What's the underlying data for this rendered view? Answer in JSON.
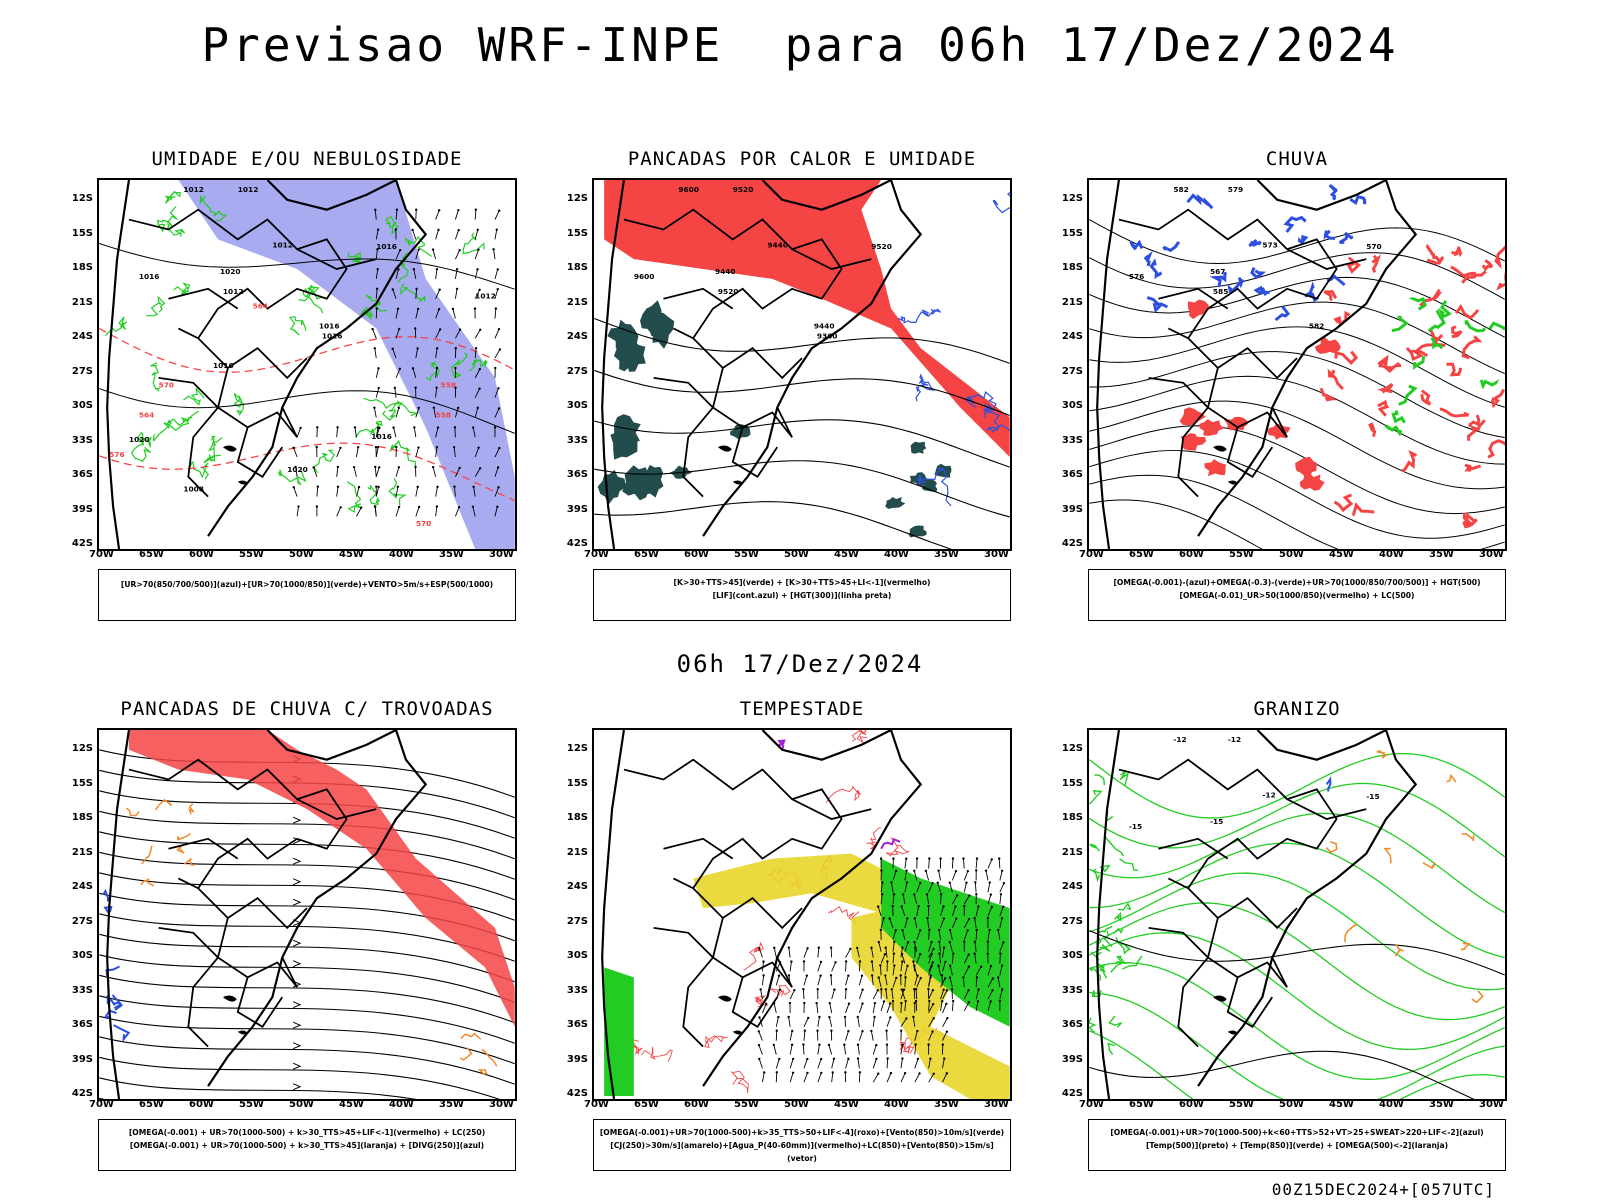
{
  "header": {
    "title": "Previsao WRF-INPE  para 06h 17/Dez/2024"
  },
  "middle": {
    "title": "06h 17/Dez/2024"
  },
  "footer": {
    "run": "00Z15DEC2024+[057UTC]"
  },
  "axes": {
    "lon": [
      "70W",
      "65W",
      "60W",
      "55W",
      "50W",
      "45W",
      "40W",
      "35W",
      "30W"
    ],
    "lat": [
      "12S",
      "15S",
      "18S",
      "21S",
      "24S",
      "27S",
      "30S",
      "33S",
      "36S",
      "39S",
      "42S"
    ]
  },
  "colors": {
    "red": "#f44444",
    "blue": "#2d4fe0",
    "green": "#22cc22",
    "lavender": "#9ea2ee",
    "yellow": "#e8d52a",
    "orange": "#f08a2a",
    "darkteal": "#234d4d",
    "purple": "#a020d0"
  },
  "panels": [
    {
      "title": "UMIDADE E/OU NEBULOSIDADE",
      "legend": [
        "[UR>70(850/700/500)](azul)+[UR>70(1000/850)](verde)+VENTO>5m/s+ESP(500/1000)"
      ],
      "labels": [
        "1012",
        "1012",
        "1012",
        "1016",
        "1020",
        "1016",
        "1012",
        "1016",
        "1016",
        "1012",
        "1016",
        "1016",
        "1020",
        "1020",
        "1008",
        "570",
        "564",
        "570",
        "564",
        "558",
        "558",
        "576"
      ]
    },
    {
      "title": "PANCADAS POR CALOR E UMIDADE",
      "legend": [
        "[K>30+TTS>45](verde) + [K>30+TTS>45+LI<-1](vermelho)",
        "[LIF](cont.azul) + [HGT(300)](linha preta)"
      ],
      "labels": [
        "9600",
        "9520",
        "9440",
        "9520",
        "9440",
        "9600",
        "9520",
        "9440",
        "9360"
      ]
    },
    {
      "title": "CHUVA",
      "legend": [
        "[OMEGA(-0.001)-(azul)+OMEGA(-0.3)-(verde)+UR>70(1000/850/700/500)] + HGT(500)",
        "[OMEGA(-0.01)_UR>50(1000/850)(vermelho) + LC(500)"
      ],
      "labels": [
        "582",
        "579",
        "573",
        "570",
        "567",
        "576",
        "585",
        "582"
      ]
    },
    {
      "title": "PANCADAS DE CHUVA C/ TROVOADAS",
      "legend": [
        "[OMEGA(-0.001) + UR>70(1000-500) + k>30_TTS>45+LIF<-1](vermelho) + LC(250)",
        "[OMEGA(-0.001) + UR>70(1000-500) + k>30_TTS>45](laranja) + [DIVG(250)](azul)"
      ],
      "labels": []
    },
    {
      "title": "TEMPESTADE",
      "legend": [
        "[OMEGA(-0.001)+UR>70(1000-500)+k>35_TTS>50+LIF<-4](roxo)+[Vento(850)>10m/s](verde)",
        "[CJ(250)>30m/s](amarelo)+[Agua_P(40-60mm)](vermelho)+LC(850)+[Vento(850)>15m/s](vetor)"
      ],
      "labels": []
    },
    {
      "title": "GRANIZO",
      "legend": [
        "[OMEGA(-0.001)+UR>70(1000-500)+k<60+TTS>52+VT>25+SWEAT>220+LIF<-2](azul)",
        "[Temp(500)](preto) + [Temp(850)](verde) + [OMEGA(500)<-2](laranja)"
      ],
      "labels": [
        "-12",
        "-12",
        "-12",
        "-15",
        "-15",
        "-15"
      ]
    }
  ]
}
